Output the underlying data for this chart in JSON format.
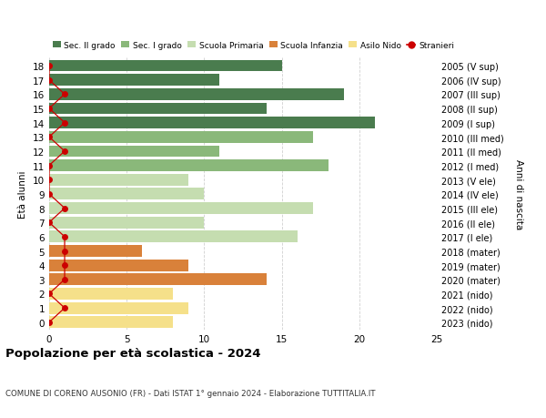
{
  "ages": [
    18,
    17,
    16,
    15,
    14,
    13,
    12,
    11,
    10,
    9,
    8,
    7,
    6,
    5,
    4,
    3,
    2,
    1,
    0
  ],
  "right_labels": [
    "2005 (V sup)",
    "2006 (IV sup)",
    "2007 (III sup)",
    "2008 (II sup)",
    "2009 (I sup)",
    "2010 (III med)",
    "2011 (II med)",
    "2012 (I med)",
    "2013 (V ele)",
    "2014 (IV ele)",
    "2015 (III ele)",
    "2016 (II ele)",
    "2017 (I ele)",
    "2018 (mater)",
    "2019 (mater)",
    "2020 (mater)",
    "2021 (nido)",
    "2022 (nido)",
    "2023 (nido)"
  ],
  "bar_values": [
    15,
    11,
    19,
    14,
    21,
    17,
    11,
    18,
    9,
    10,
    17,
    10,
    16,
    6,
    9,
    14,
    8,
    9,
    8
  ],
  "bar_colors": [
    "#4a7c4e",
    "#4a7c4e",
    "#4a7c4e",
    "#4a7c4e",
    "#4a7c4e",
    "#8ab87a",
    "#8ab87a",
    "#8ab87a",
    "#c5ddb0",
    "#c5ddb0",
    "#c5ddb0",
    "#c5ddb0",
    "#c5ddb0",
    "#d9813a",
    "#d9813a",
    "#d9813a",
    "#f5e08a",
    "#f5e08a",
    "#f5e08a"
  ],
  "stranieri_x": [
    0,
    0,
    1,
    0,
    1,
    0,
    1,
    0,
    0,
    0,
    1,
    0,
    1,
    1,
    1,
    1,
    0,
    1,
    0
  ],
  "title": "Popolazione per età scolastica - 2024",
  "subtitle": "COMUNE DI CORENO AUSONIO (FR) - Dati ISTAT 1° gennaio 2024 - Elaborazione TUTTITALIA.IT",
  "ylabel": "Età alunni",
  "right_ylabel": "Anni di nascita",
  "xlim": [
    0,
    25
  ],
  "xticks": [
    0,
    5,
    10,
    15,
    20,
    25
  ],
  "legend_items": [
    {
      "label": "Sec. II grado",
      "color": "#4a7c4e"
    },
    {
      "label": "Sec. I grado",
      "color": "#8ab87a"
    },
    {
      "label": "Scuola Primaria",
      "color": "#c5ddb0"
    },
    {
      "label": "Scuola Infanzia",
      "color": "#d9813a"
    },
    {
      "label": "Asilo Nido",
      "color": "#f5e08a"
    },
    {
      "label": "Stranieri",
      "color": "#cc0000"
    }
  ],
  "background_color": "#ffffff",
  "grid_color": "#d0d0d0"
}
